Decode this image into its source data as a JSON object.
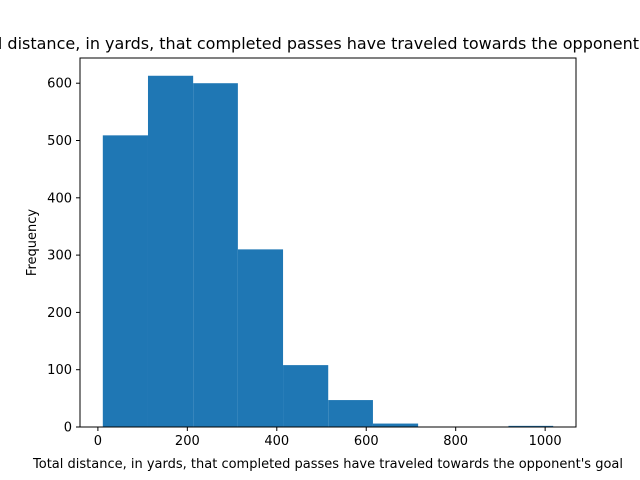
{
  "chart_data": {
    "type": "bar",
    "title": "Total distance, in yards, that completed passes have traveled towards the opponent's goal",
    "xlabel": "Total distance, in yards, that completed passes have traveled towards the opponent's goal",
    "ylabel": "Frequency",
    "bins": [
      {
        "x0": 11,
        "x1": 112,
        "count": 509
      },
      {
        "x0": 112,
        "x1": 213,
        "count": 613
      },
      {
        "x0": 213,
        "x1": 313,
        "count": 600
      },
      {
        "x0": 313,
        "x1": 414,
        "count": 310
      },
      {
        "x0": 414,
        "x1": 515,
        "count": 108
      },
      {
        "x0": 515,
        "x1": 615,
        "count": 47
      },
      {
        "x0": 615,
        "x1": 716,
        "count": 6
      },
      {
        "x0": 716,
        "x1": 817,
        "count": 0
      },
      {
        "x0": 817,
        "x1": 918,
        "count": 0
      },
      {
        "x0": 918,
        "x1": 1018,
        "count": 2
      }
    ],
    "xlim": [
      -40,
      1069
    ],
    "ylim": [
      0,
      644
    ],
    "xticks": [
      0,
      200,
      400,
      600,
      800,
      1000
    ],
    "yticks": [
      0,
      100,
      200,
      300,
      400,
      500,
      600
    ],
    "bar_color": "#1f77b4",
    "grid": false
  }
}
